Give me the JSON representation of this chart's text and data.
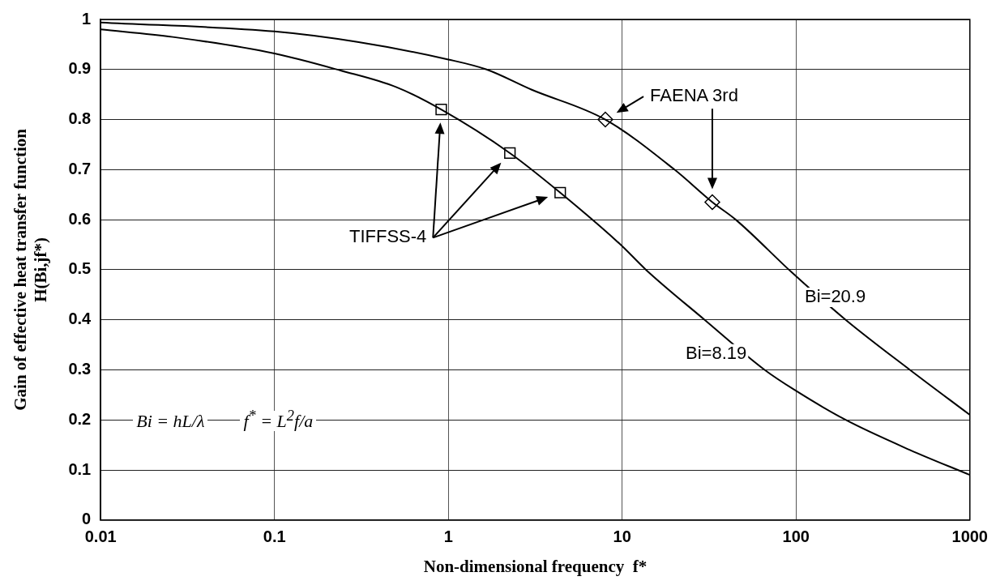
{
  "chart_data": {
    "type": "line",
    "xlabel": "Non-dimensional frequency  f*",
    "ylabel": "Gain of effective heat transfer function\nH(Bi,jf*)",
    "log": "x",
    "grid": true,
    "legend": false,
    "xlim": [
      0.01,
      1000
    ],
    "xticks": [
      0.01,
      0.1,
      1,
      10,
      100,
      1000
    ],
    "ylim": [
      0,
      1
    ],
    "yticks": [
      0,
      0.1,
      0.2,
      0.3,
      0.4,
      0.5,
      0.6,
      0.7,
      0.8,
      0.9,
      1
    ],
    "series": [
      {
        "color": "#000000",
        "marker": "none",
        "x": [
          0.01,
          0.1,
          0.3,
          1,
          1.66,
          3,
          8,
          20,
          33,
          45,
          95,
          193,
          452,
          1000
        ],
        "values": [
          0.994,
          0.976,
          0.955,
          0.92,
          0.9,
          0.86,
          0.8,
          0.7,
          0.635,
          0.6,
          0.494,
          0.4,
          0.3,
          0.21
        ]
      },
      {
        "color": "#000000",
        "marker": "none",
        "x": [
          0.01,
          0.026,
          0.1,
          0.24,
          0.5,
          0.91,
          2.26,
          4.4,
          9.8,
          13.7,
          29.8,
          66,
          98,
          193,
          452,
          1000
        ],
        "values": [
          0.98,
          0.965,
          0.932,
          0.898,
          0.865,
          0.82,
          0.733,
          0.654,
          0.55,
          0.5,
          0.4,
          0.3,
          0.26,
          0.2,
          0.14,
          0.09
        ]
      },
      {
        "type": "scatter",
        "color": "#000000",
        "marker": "diamond",
        "x": [
          8,
          33
        ],
        "values": [
          0.8,
          0.635
        ]
      },
      {
        "type": "scatter",
        "color": "#000000",
        "marker": "square",
        "x": [
          0.91,
          2.26,
          4.4
        ],
        "values": [
          0.82,
          0.733,
          0.654
        ]
      }
    ],
    "annotations": [
      "FAENA 3rd",
      "TIFFSS-4",
      "Bi=20.9",
      "Bi=8.19",
      "Bi = hL/λ",
      "f$^{*}$ = L$^{2}$f/a"
    ]
  }
}
